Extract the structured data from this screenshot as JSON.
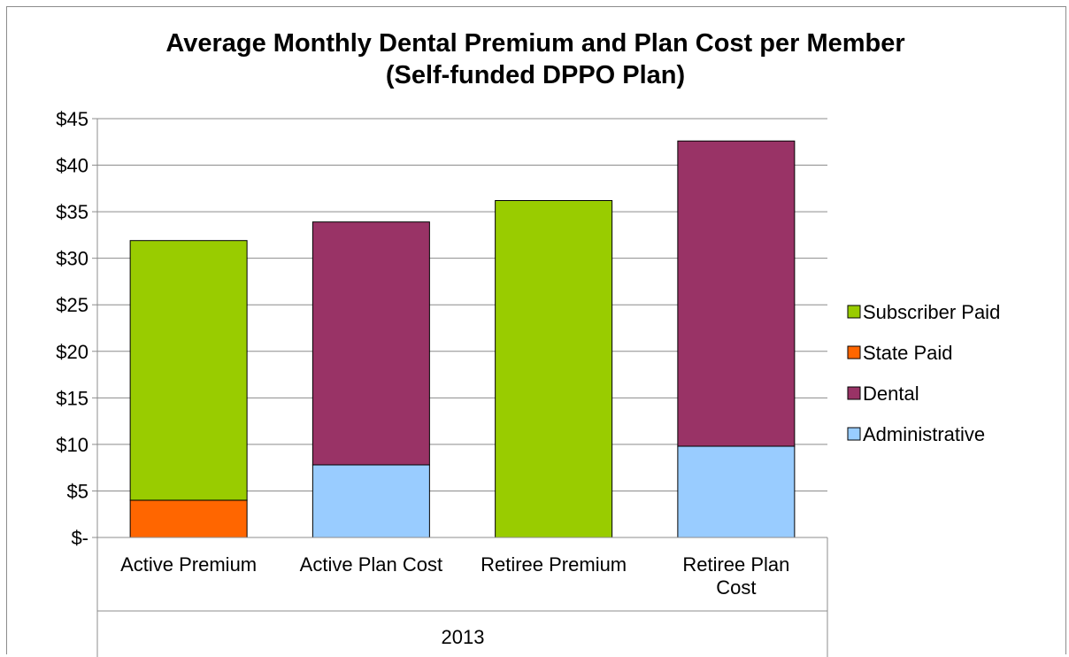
{
  "chart_data": {
    "type": "bar",
    "stacked": true,
    "title": "Average Monthly Dental Premium and Plan Cost per Member",
    "subtitle": "(Self-funded DPPO Plan)",
    "categories": [
      "Active Premium",
      "Active Plan Cost",
      "Retiree Premium",
      "Retiree Plan Cost"
    ],
    "group_label": "2013",
    "y_tick_labels": [
      "$-",
      "$5",
      "$10",
      "$15",
      "$20",
      "$25",
      "$30",
      "$35",
      "$40",
      "$45"
    ],
    "ylim": [
      0,
      45
    ],
    "grid": true,
    "legend_position": "right",
    "series": [
      {
        "name": "Administrative",
        "color": "#99ccff",
        "values": [
          0,
          7.8,
          0,
          9.8
        ]
      },
      {
        "name": "Dental",
        "color": "#993366",
        "values": [
          0,
          26.1,
          0,
          32.8
        ]
      },
      {
        "name": "State Paid",
        "color": "#ff6600",
        "values": [
          4.0,
          0,
          0,
          0
        ]
      },
      {
        "name": "Subscriber Paid",
        "color": "#99cc00",
        "values": [
          27.9,
          0,
          36.2,
          0
        ]
      }
    ],
    "legend_order": [
      "Subscriber Paid",
      "State Paid",
      "Dental",
      "Administrative"
    ]
  }
}
